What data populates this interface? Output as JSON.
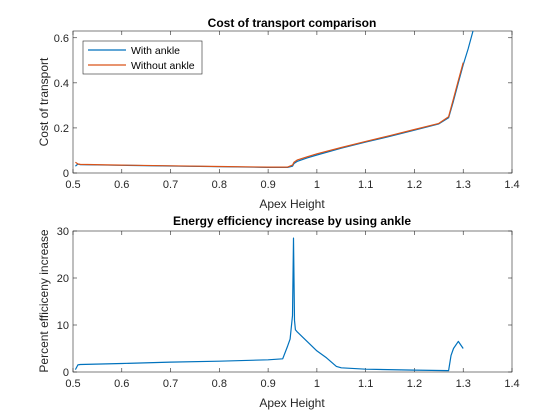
{
  "colors": {
    "with_ankle": "#0072BD",
    "without_ankle": "#D95319",
    "axis": "#262626",
    "background": "#ffffff"
  },
  "chart_data": [
    {
      "type": "line",
      "title": "Cost of transport comparison",
      "xlabel": "Apex Height",
      "ylabel": "Cost of transport",
      "xlim": [
        0.5,
        1.4
      ],
      "ylim": [
        0,
        0.63
      ],
      "xticks": [
        0.5,
        0.6,
        0.7,
        0.8,
        0.9,
        1,
        1.1,
        1.2,
        1.3,
        1.4
      ],
      "xtick_labels": [
        "0.5",
        "0.6",
        "0.7",
        "0.8",
        "0.9",
        "1",
        "1.1",
        "1.2",
        "1.3",
        "1.4"
      ],
      "yticks": [
        0,
        0.2,
        0.4,
        0.6
      ],
      "ytick_labels": [
        "0",
        "0.2",
        "0.4",
        "0.6"
      ],
      "grid": false,
      "legend": {
        "position": "top-left",
        "entries": [
          "With ankle",
          "Without ankle"
        ]
      },
      "series": [
        {
          "name": "With ankle",
          "color": "#0072BD",
          "x": [
            0.505,
            0.51,
            0.515,
            0.6,
            0.7,
            0.8,
            0.9,
            0.94,
            0.95,
            0.953,
            0.96,
            0.98,
            1.0,
            1.05,
            1.1,
            1.15,
            1.2,
            1.25,
            1.27,
            1.28,
            1.29,
            1.3,
            1.31,
            1.32
          ],
          "y": [
            0.03,
            0.04,
            0.037,
            0.034,
            0.031,
            0.028,
            0.025,
            0.025,
            0.03,
            0.042,
            0.052,
            0.067,
            0.08,
            0.11,
            0.137,
            0.163,
            0.19,
            0.218,
            0.245,
            0.32,
            0.4,
            0.48,
            0.55,
            0.63
          ]
        },
        {
          "name": "Without ankle",
          "color": "#D95319",
          "x": [
            0.505,
            0.51,
            0.515,
            0.6,
            0.7,
            0.8,
            0.9,
            0.94,
            0.95,
            0.953,
            0.96,
            0.98,
            1.0,
            1.05,
            1.1,
            1.15,
            1.2,
            1.25,
            1.27,
            1.28,
            1.29,
            1.3
          ],
          "y": [
            0.048,
            0.04,
            0.038,
            0.035,
            0.032,
            0.029,
            0.026,
            0.026,
            0.035,
            0.048,
            0.058,
            0.072,
            0.085,
            0.113,
            0.14,
            0.166,
            0.193,
            0.22,
            0.25,
            0.33,
            0.41,
            0.49
          ]
        }
      ]
    },
    {
      "type": "line",
      "title": "Energy efficiency increase by using ankle",
      "xlabel": "Apex Height",
      "ylabel": "Percent efficiceny increase",
      "xlim": [
        0.5,
        1.4
      ],
      "ylim": [
        0,
        30
      ],
      "xticks": [
        0.5,
        0.6,
        0.7,
        0.8,
        0.9,
        1,
        1.1,
        1.2,
        1.3,
        1.4
      ],
      "xtick_labels": [
        "0.5",
        "0.6",
        "0.7",
        "0.8",
        "0.9",
        "1",
        "1.1",
        "1.2",
        "1.3",
        "1.4"
      ],
      "yticks": [
        0,
        10,
        20,
        30
      ],
      "ytick_labels": [
        "0",
        "10",
        "20",
        "30"
      ],
      "grid": false,
      "series": [
        {
          "color": "#0072BD",
          "x": [
            0.505,
            0.51,
            0.515,
            0.6,
            0.7,
            0.8,
            0.9,
            0.93,
            0.94,
            0.945,
            0.95,
            0.952,
            0.954,
            0.956,
            0.96,
            0.98,
            1.0,
            1.02,
            1.04,
            1.05,
            1.1,
            1.2,
            1.27,
            1.275,
            1.28,
            1.29,
            1.3
          ],
          "y": [
            0.5,
            1.5,
            1.6,
            1.8,
            2.1,
            2.3,
            2.6,
            2.8,
            5.5,
            7.0,
            12.0,
            28.5,
            11.0,
            9.0,
            8.5,
            6.5,
            4.5,
            3.0,
            1.2,
            0.9,
            0.6,
            0.4,
            0.3,
            3.5,
            5.0,
            6.5,
            5.0
          ]
        }
      ]
    }
  ]
}
